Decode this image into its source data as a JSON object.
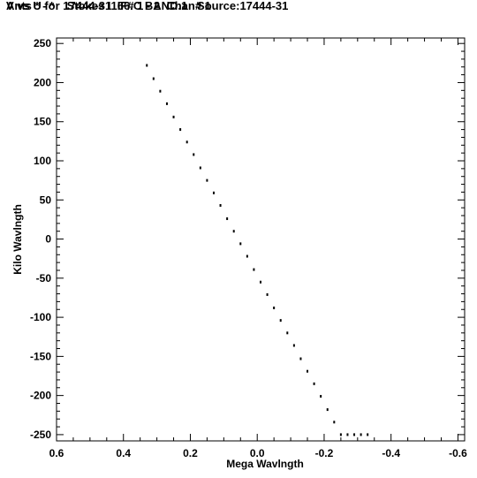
{
  "title_line1": "V vs U for 17444-31166.C BAND.1   Source:17444-31",
  "title_line2": "Ants * - *    Stokes I  IF# 1 - 2  Chan# 1",
  "chart_data": {
    "type": "scatter",
    "xlabel": "Mega Wavlngth",
    "ylabel": "Kilo Wavlngth",
    "xlim": [
      0.6,
      -0.62
    ],
    "ylim": [
      -258,
      257
    ],
    "xticks": [
      0.6,
      0.4,
      0.2,
      0.0,
      -0.2,
      -0.4,
      -0.6
    ],
    "xtick_labels": [
      "0.6",
      "0.4",
      "0.2",
      "0.0",
      "-0.2",
      "-0.4",
      "-0.6"
    ],
    "yticks": [
      250,
      200,
      150,
      100,
      50,
      0,
      -50,
      -100,
      -150,
      -200,
      -250
    ],
    "ytick_labels": [
      "250",
      "200",
      "150",
      "100",
      "50",
      "0",
      "-50",
      "-100",
      "-150",
      "-200",
      "-250"
    ],
    "grid": false,
    "marker_color": "#000000",
    "series": [
      {
        "x": [
          0.33,
          0.31,
          0.29,
          0.27,
          0.25,
          0.23,
          0.21,
          0.19,
          0.17,
          0.15,
          0.13,
          0.11,
          0.09,
          0.07,
          0.05,
          0.03,
          0.01,
          -0.01,
          -0.03,
          -0.05,
          -0.07,
          -0.09,
          -0.11,
          -0.13,
          -0.15,
          -0.17,
          -0.19,
          -0.21,
          -0.23,
          -0.25,
          -0.27,
          -0.29,
          -0.31,
          -0.33
        ],
        "y": [
          222,
          205,
          189,
          173,
          156,
          140,
          124,
          108,
          91,
          75,
          59,
          43,
          26,
          10,
          -6,
          -22,
          -39,
          -55,
          -71,
          -88,
          -104,
          -120,
          -136,
          -153,
          -169,
          -185,
          -201,
          -218,
          -234,
          -250,
          -250,
          -250,
          -250,
          -250
        ]
      }
    ]
  }
}
